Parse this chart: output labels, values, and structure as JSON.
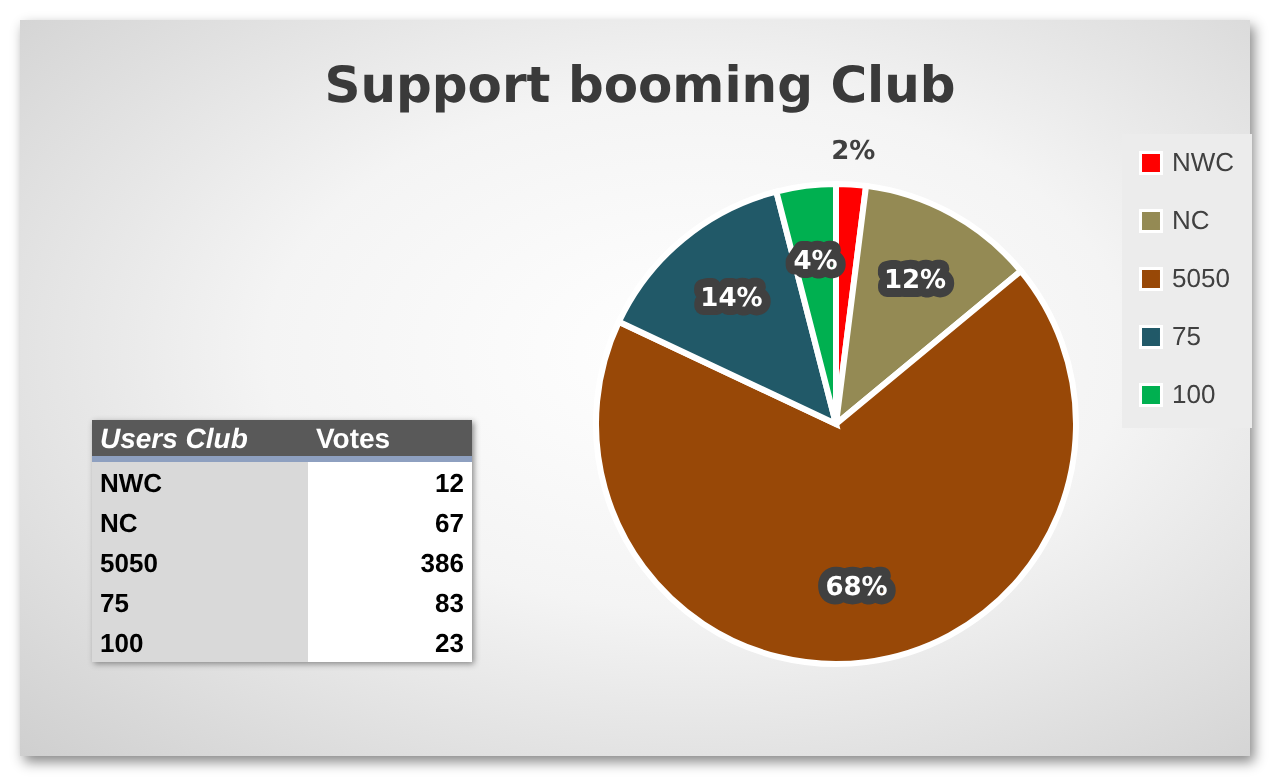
{
  "chart_data": [
    {
      "type": "pie",
      "title": "Support booming Club",
      "categories": [
        "NWC",
        "NC",
        "5050",
        "75",
        "100"
      ],
      "values": [
        2,
        12,
        68,
        14,
        4
      ],
      "colors": [
        "#ff0000",
        "#948a54",
        "#984807",
        "#215968",
        "#00b050"
      ],
      "value_labels": [
        "2%",
        "12%",
        "68%",
        "14%",
        "4%"
      ],
      "legend": "right"
    },
    {
      "type": "other",
      "xlabel": "Users Club",
      "ylabel": "Votes",
      "categories": [
        "NWC",
        "NC",
        "5050",
        "75",
        "100"
      ],
      "values": [
        12,
        67,
        386,
        83,
        23
      ],
      "data_labels": true
    }
  ]
}
